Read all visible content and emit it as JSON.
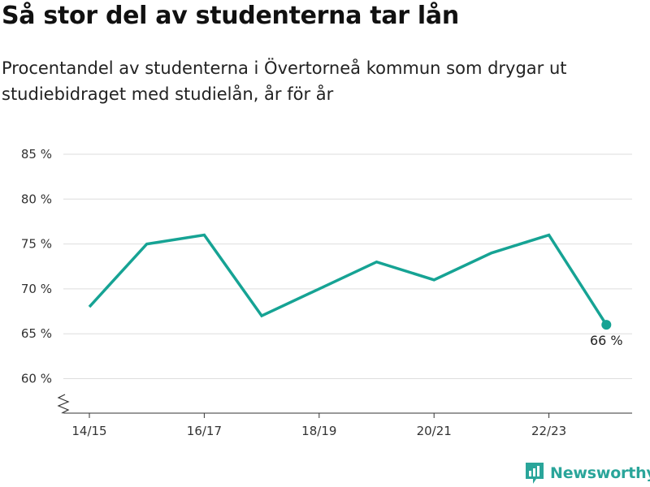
{
  "header": {
    "title": "Så stor del av studenterna tar lån",
    "subtitle": "Procentandel av studenterna i Övertorneå kommun som drygar ut studiebidraget med studielån, år för år"
  },
  "brand": {
    "name": "Newsworthy",
    "color": "#2aa59a"
  },
  "chart_data": {
    "type": "line",
    "title": "Så stor del av studenterna tar lån",
    "subtitle": "Procentandel av studenterna i Övertorneå kommun som drygar ut studiebidraget med studielån, år för år",
    "x": [
      "14/15",
      "15/16",
      "16/17",
      "17/18",
      "18/19",
      "19/20",
      "20/21",
      "21/22",
      "22/23",
      "23/24"
    ],
    "series": [
      {
        "values": [
          68,
          75,
          76,
          67,
          70,
          73,
          71,
          74,
          76,
          66
        ],
        "color": "#16a394"
      }
    ],
    "xticks": [
      "14/15",
      "16/17",
      "18/19",
      "20/21",
      "22/23"
    ],
    "yticks": [
      60,
      65,
      70,
      75,
      80,
      85
    ],
    "ytick_labels": [
      "60 %",
      "65 %",
      "70 %",
      "75 %",
      "80 %",
      "85 %"
    ],
    "ylim": [
      56,
      85
    ],
    "axis_break": true,
    "grid": true,
    "end_label": "66 %"
  }
}
